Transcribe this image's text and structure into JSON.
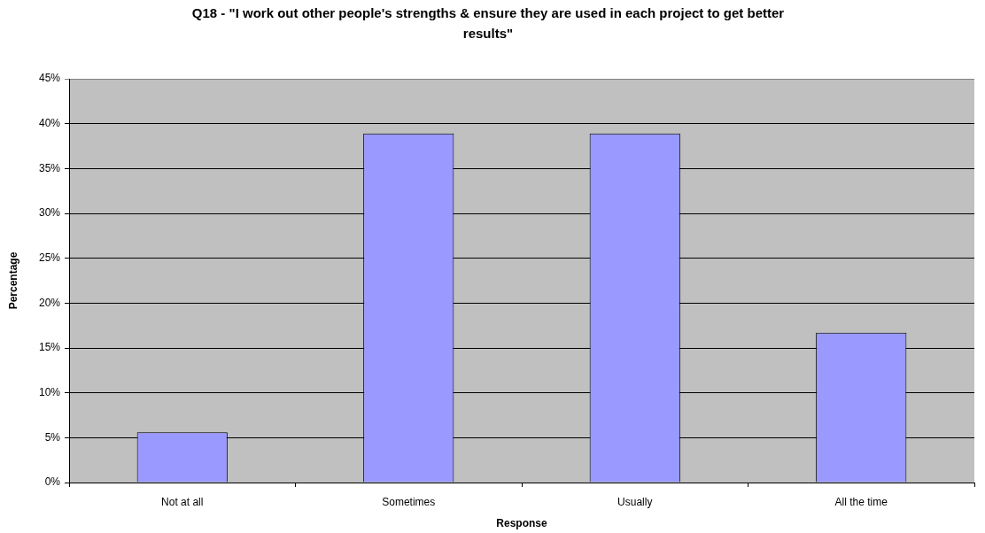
{
  "chart_data": {
    "type": "bar",
    "title": "Q18 - \"I work out other people's strengths & ensure they are used in each project to get better results\"",
    "xlabel": "Response",
    "ylabel": "Percentage",
    "categories": [
      "Not at all",
      "Sometimes",
      "Usually",
      "All the time"
    ],
    "values": [
      5.6,
      38.9,
      38.9,
      16.7
    ],
    "color": "#9999ff",
    "ylim": [
      0,
      45
    ],
    "yticks": [
      {
        "value": 0,
        "label": "0%"
      },
      {
        "value": 5,
        "label": "5%"
      },
      {
        "value": 10,
        "label": "10%"
      },
      {
        "value": 15,
        "label": "15%"
      },
      {
        "value": 20,
        "label": "20%"
      },
      {
        "value": 25,
        "label": "25%"
      },
      {
        "value": 30,
        "label": "30%"
      },
      {
        "value": 35,
        "label": "35%"
      },
      {
        "value": 40,
        "label": "40%"
      },
      {
        "value": 45,
        "label": "45%"
      }
    ],
    "grid": "y"
  }
}
